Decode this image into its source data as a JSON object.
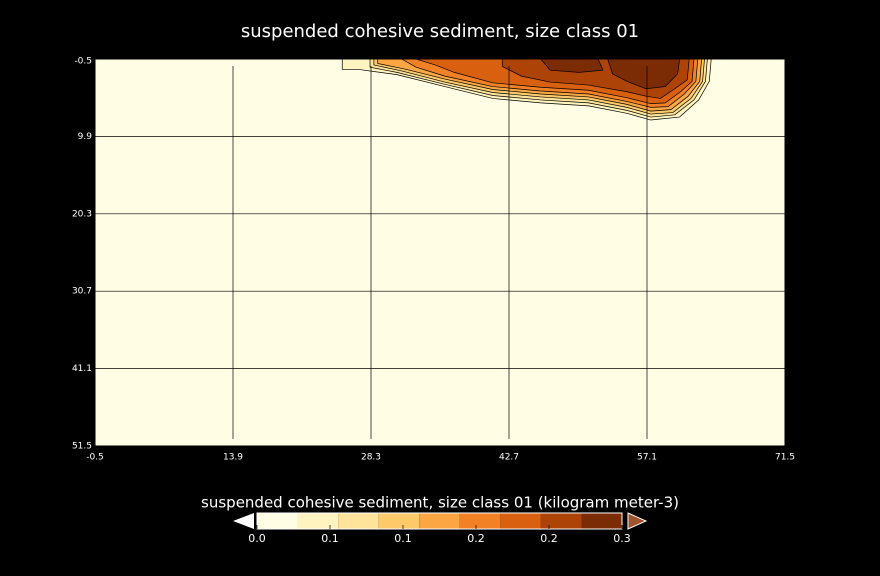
{
  "chart_data": {
    "type": "contour",
    "title": "suspended cohesive sediment, size class 01",
    "xlim": [
      -0.5,
      71.5
    ],
    "xticks": [
      -0.5,
      13.9,
      28.3,
      42.7,
      57.1,
      71.5
    ],
    "ylim": [
      51.5,
      -0.5
    ],
    "yticks": [
      -0.5,
      9.9,
      20.3,
      30.7,
      41.1,
      51.5
    ],
    "grid": true,
    "colorbar_label": "suspended cohesive sediment, size class 01 (kilogram meter-3)",
    "levels": [
      0,
      0.0333,
      0.0667,
      0.1,
      0.1333,
      0.1667,
      0.2,
      0.2333,
      0.2667,
      0.3
    ],
    "colors": [
      "#fffde3",
      "#fff4c0",
      "#fee49a",
      "#fec969",
      "#fca643",
      "#f28024",
      "#d9600f",
      "#ad4307",
      "#7b2c05"
    ],
    "under_color": "#ffffff",
    "over_color": "#a0522d",
    "colorbar_ticks": [
      {
        "value": 0,
        "label": "0.0"
      },
      {
        "value": 0.06,
        "label": "0.1"
      },
      {
        "value": 0.12,
        "label": "0.1"
      },
      {
        "value": 0.18,
        "label": "0.2"
      },
      {
        "value": 0.24,
        "label": "0.2"
      },
      0.3
    ],
    "regions": [
      {
        "level": 0.0333,
        "points": [
          [
            25.3,
            -0.5
          ],
          [
            63.8,
            -0.5
          ],
          [
            63.6,
            2.5
          ],
          [
            62.5,
            5
          ],
          [
            60.5,
            7.3
          ],
          [
            57.5,
            7.7
          ],
          [
            55,
            6.8
          ],
          [
            51,
            5.8
          ],
          [
            46,
            5.4
          ],
          [
            41,
            4.8
          ],
          [
            36,
            3.2
          ],
          [
            31,
            1.6
          ],
          [
            27,
            0.9
          ],
          [
            25.3,
            0.9
          ]
        ]
      },
      {
        "level": 0.0667,
        "points": [
          [
            28.2,
            -0.5
          ],
          [
            63.4,
            -0.5
          ],
          [
            63.2,
            2.5
          ],
          [
            62,
            5
          ],
          [
            60,
            7
          ],
          [
            57.5,
            7.3
          ],
          [
            55,
            6.4
          ],
          [
            51,
            5.4
          ],
          [
            46,
            5
          ],
          [
            41,
            4.4
          ],
          [
            36,
            2.9
          ],
          [
            31,
            1.3
          ],
          [
            28.2,
            0.6
          ]
        ]
      },
      {
        "level": 0.1,
        "points": [
          [
            28.6,
            -0.5
          ],
          [
            63.1,
            -0.5
          ],
          [
            62.9,
            2.5
          ],
          [
            61.7,
            4.8
          ],
          [
            59.8,
            6.7
          ],
          [
            57.5,
            6.9
          ],
          [
            55,
            6
          ],
          [
            51,
            5
          ],
          [
            46,
            4.6
          ],
          [
            41,
            4
          ],
          [
            36,
            2.6
          ],
          [
            31.5,
            1.1
          ],
          [
            28.6,
            0.3
          ]
        ]
      },
      {
        "level": 0.1333,
        "points": [
          [
            29,
            -0.5
          ],
          [
            62.8,
            -0.5
          ],
          [
            62.6,
            2.5
          ],
          [
            61.4,
            4.5
          ],
          [
            59.6,
            6.3
          ],
          [
            57.5,
            6.5
          ],
          [
            55,
            5.6
          ],
          [
            51,
            4.6
          ],
          [
            46,
            4.2
          ],
          [
            41,
            3.6
          ],
          [
            36,
            2.2
          ],
          [
            32,
            0.9
          ],
          [
            29,
            0.1
          ]
        ]
      },
      {
        "level": 0.1667,
        "points": [
          [
            31.5,
            -0.5
          ],
          [
            62.4,
            -0.5
          ],
          [
            62.2,
            2.5
          ],
          [
            61,
            4.2
          ],
          [
            59.3,
            5.9
          ],
          [
            57.5,
            6
          ],
          [
            55,
            5.2
          ],
          [
            51,
            4.2
          ],
          [
            46,
            3.8
          ],
          [
            41,
            3.2
          ],
          [
            36,
            1.8
          ],
          [
            33,
            0.6
          ]
        ]
      },
      {
        "level": 0.2,
        "points": [
          [
            33,
            -0.5
          ],
          [
            62,
            -0.5
          ],
          [
            61.8,
            2.5
          ],
          [
            60.6,
            3.9
          ],
          [
            59,
            5.4
          ],
          [
            57.5,
            5.5
          ],
          [
            55,
            4.7
          ],
          [
            51,
            3.7
          ],
          [
            46,
            3.3
          ],
          [
            41,
            2.7
          ],
          [
            37,
            1.3
          ],
          [
            35,
            0.3
          ]
        ]
      },
      {
        "level": 0.2333,
        "points": [
          [
            42,
            -0.5
          ],
          [
            61.5,
            -0.5
          ],
          [
            61.3,
            2.3
          ],
          [
            60,
            3.5
          ],
          [
            58.5,
            4.8
          ],
          [
            57,
            4.5
          ],
          [
            55,
            3.9
          ],
          [
            51,
            3
          ],
          [
            47,
            2.6
          ],
          [
            44,
            1.8
          ],
          [
            42,
            0.5
          ]
        ]
      },
      {
        "level": 0.2667,
        "points": [
          [
            46,
            -0.5
          ],
          [
            52,
            -0.5
          ],
          [
            52.5,
            1
          ],
          [
            50,
            1.3
          ],
          [
            47,
            1
          ]
        ]
      },
      {
        "level": 0.2667,
        "points": [
          [
            53,
            -0.5
          ],
          [
            60.5,
            -0.5
          ],
          [
            60.3,
            1.5
          ],
          [
            59,
            3.2
          ],
          [
            57,
            3.5
          ],
          [
            55,
            2.5
          ],
          [
            53.5,
            1.5
          ]
        ]
      }
    ]
  }
}
